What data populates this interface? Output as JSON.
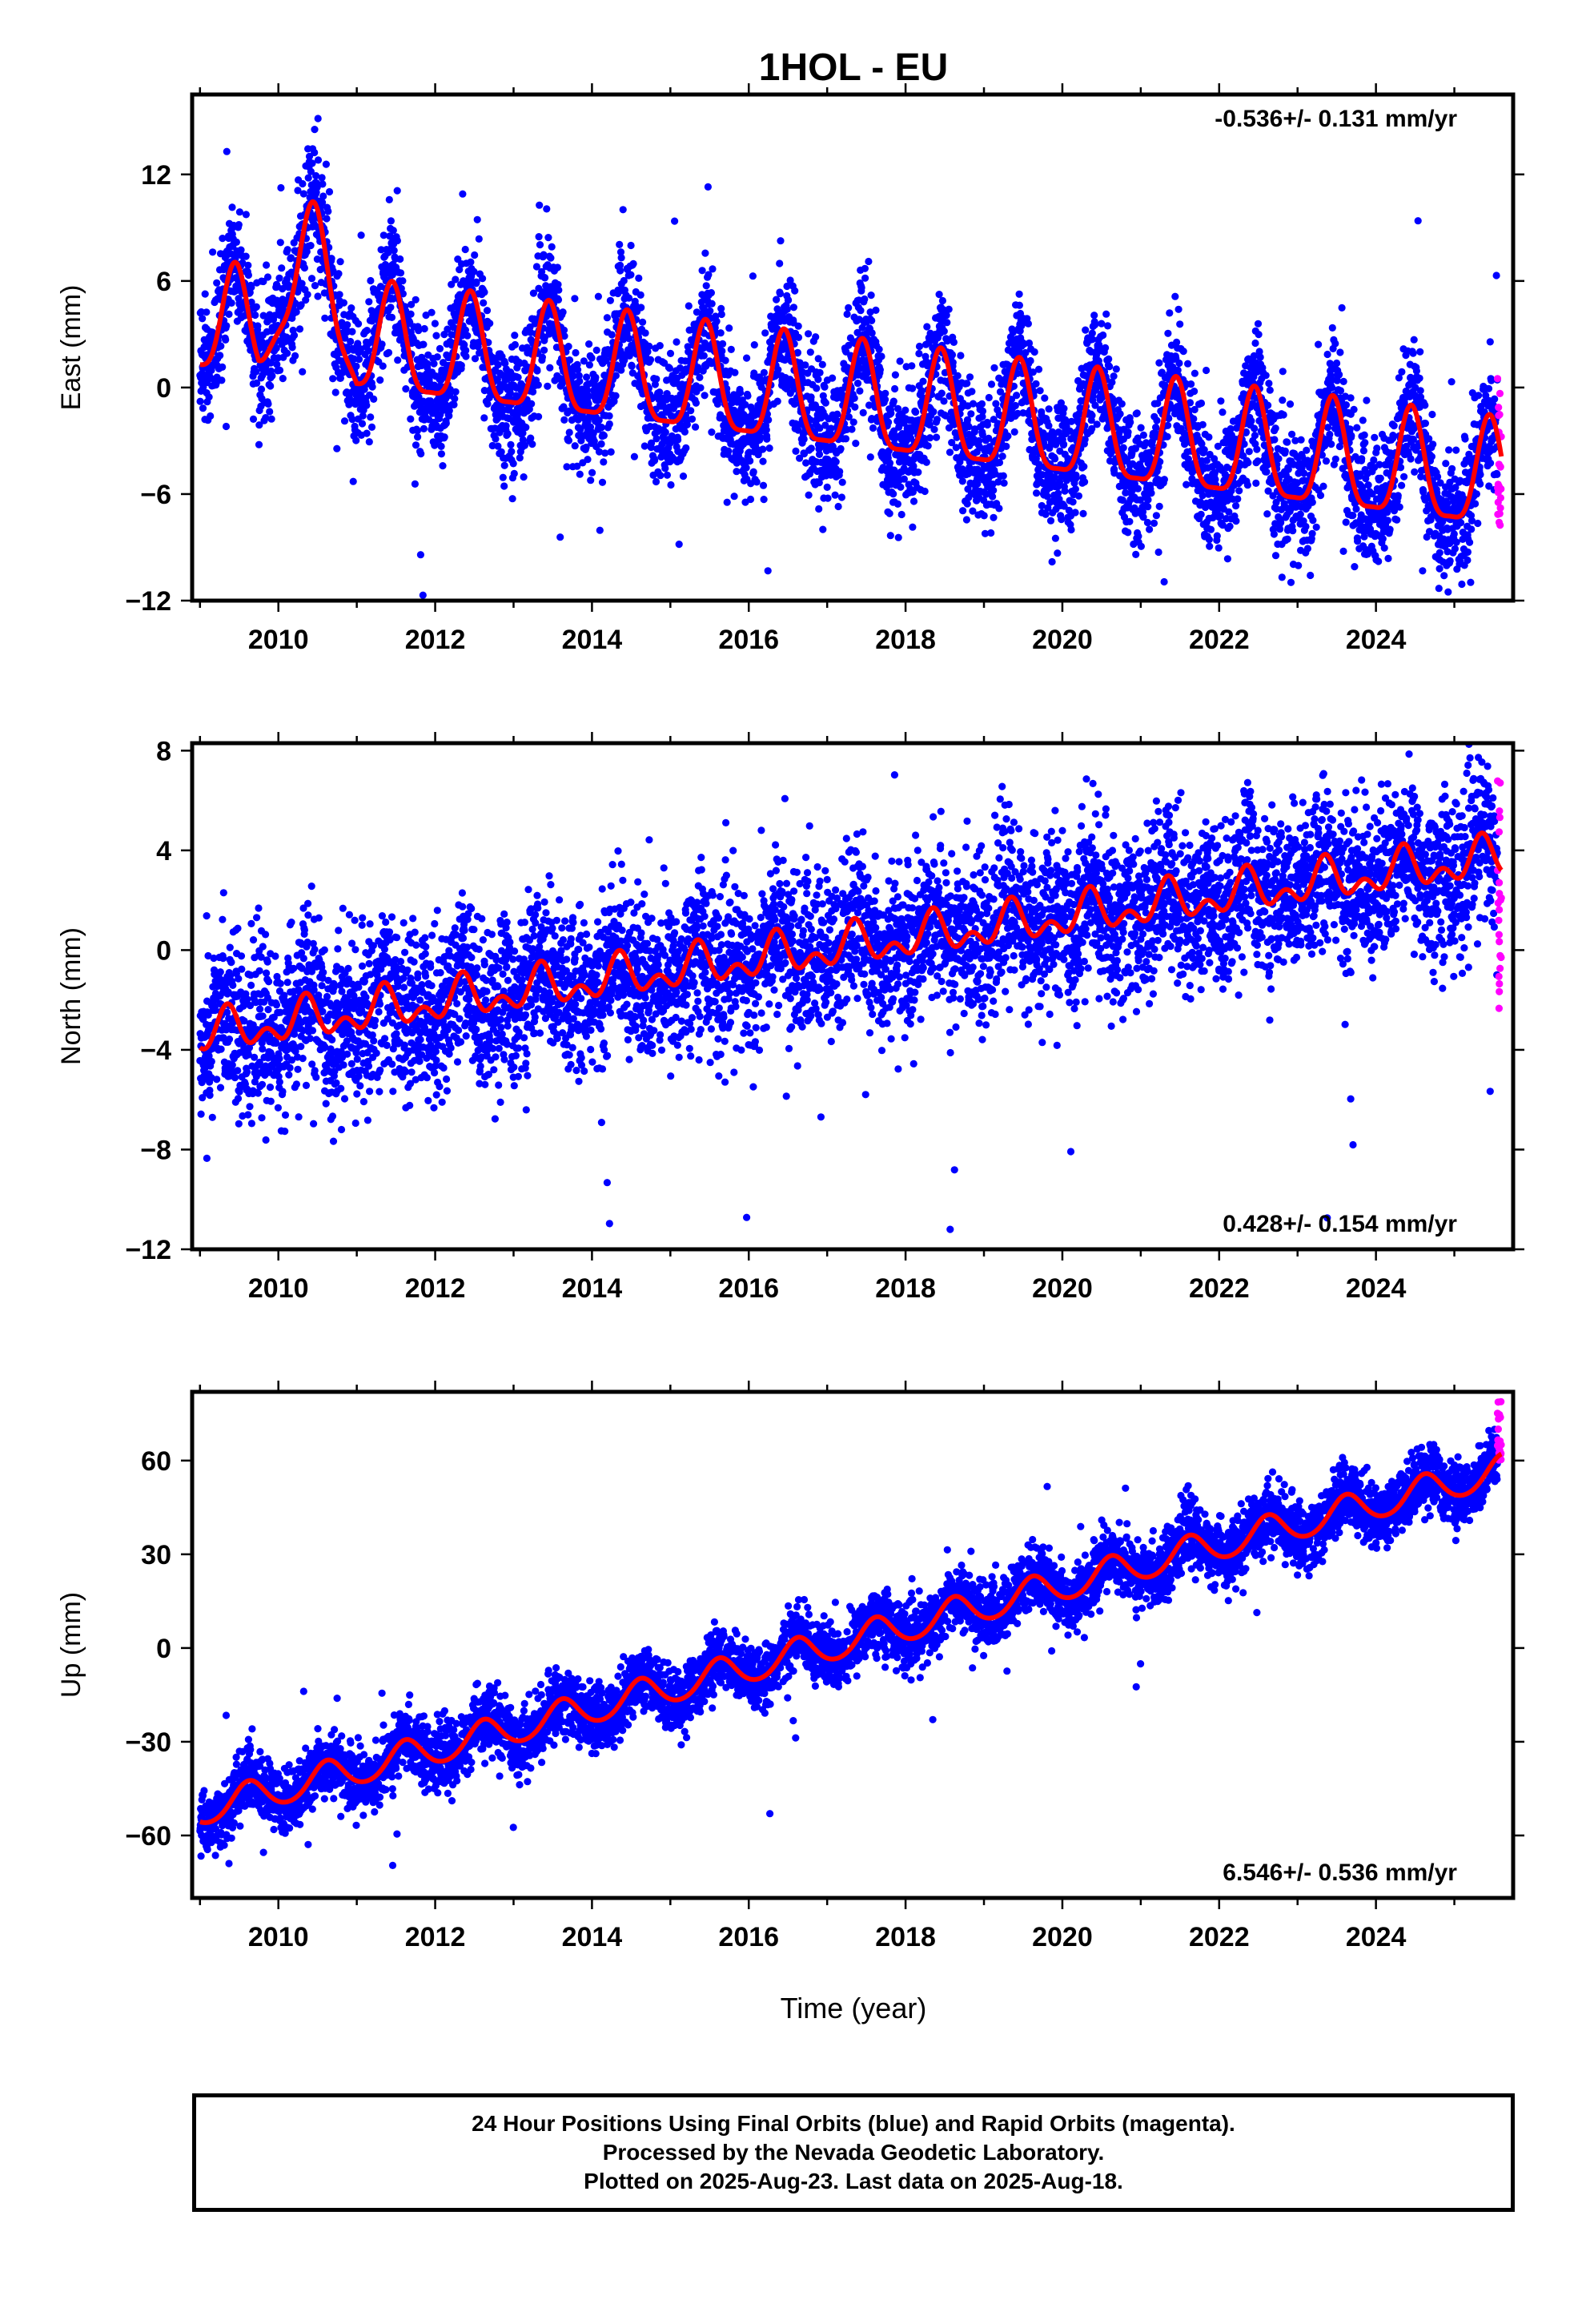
{
  "chart_data": {
    "type": "scatter",
    "title": "1HOL - EU",
    "x_label": "Time (year)",
    "x_range": [
      2008.9,
      2025.75
    ],
    "x_ticks": [
      2010,
      2012,
      2014,
      2016,
      2018,
      2020,
      2022,
      2024
    ],
    "series_colors": {
      "final_orbits": "#0000ff",
      "rapid_orbits": "#ff00ff",
      "model_fit": "#ff0000"
    },
    "panels": [
      {
        "component": "east",
        "ylabel": "East (mm)",
        "ylim": [
          -12,
          16.5
        ],
        "yticks": [
          12,
          6,
          0,
          -6,
          -12
        ],
        "rate_label": "-0.536+/- 0.131 mm/yr",
        "rate_position": "top-right",
        "model": {
          "start": 2009.0,
          "end": 2025.6,
          "offset_at_start": 3.5,
          "rate": -0.536,
          "annual_amplitude": 3.0,
          "annual_peak": 0.45,
          "semiannual_amplitude": 0.8,
          "anomaly_2010": {
            "start": 2009.75,
            "end": 2011.0,
            "extra": 4.0
          }
        },
        "scatter_spread": 1.8,
        "rapid_range": [
          -8,
          1
        ]
      },
      {
        "component": "north",
        "ylabel": "North (mm)",
        "ylim": [
          -12,
          8.3
        ],
        "yticks": [
          8,
          4,
          0,
          -4,
          -8,
          -12
        ],
        "rate_label": "0.428+/- 0.154 mm/yr",
        "rate_position": "bottom-right",
        "model": {
          "start": 2009.0,
          "end": 2025.6,
          "offset_at_start": -3.4,
          "rate": 0.428,
          "annual_amplitude": 0.6,
          "annual_peak": 0.35,
          "semiannual_amplitude": 0.5
        },
        "scatter_spread": 1.6,
        "rapid_range": [
          -2.5,
          7.5
        ]
      },
      {
        "component": "up",
        "ylabel": "Up (mm)",
        "ylim": [
          -80,
          82
        ],
        "yticks": [
          60,
          30,
          0,
          -30,
          -60
        ],
        "rate_label": "6.546+/- 0.536 mm/yr",
        "rate_position": "bottom-right",
        "model": {
          "start": 2009.0,
          "end": 2025.6,
          "offset_at_start": -52,
          "rate": 6.546,
          "annual_amplitude": 5.0,
          "annual_peak": 0.62,
          "semiannual_amplitude": 0.5
        },
        "scatter_spread": 5.0,
        "rapid_range": [
          60,
          80
        ]
      }
    ]
  },
  "caption": {
    "line1": "24 Hour Positions Using Final Orbits (blue) and Rapid Orbits (magenta).",
    "line2": "Processed by the Nevada Geodetic Laboratory.",
    "line3": "Plotted on 2025-Aug-23. Last data on 2025-Aug-18."
  }
}
